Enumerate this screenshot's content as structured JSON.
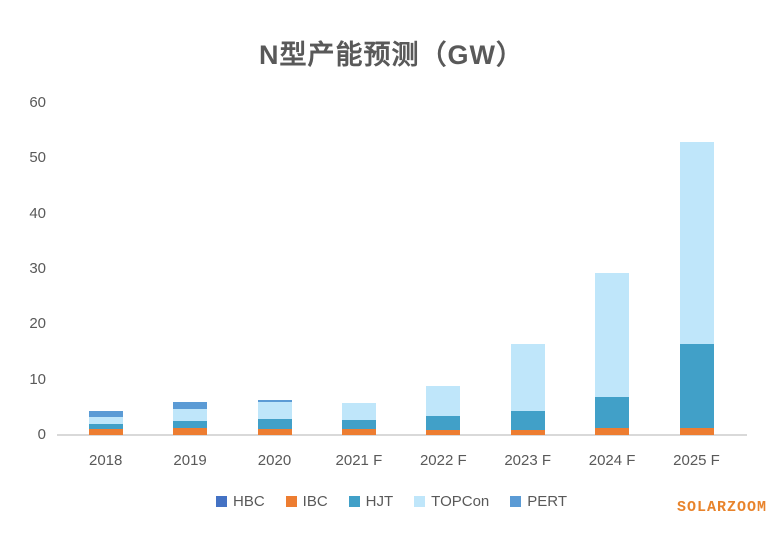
{
  "title": "N型产能预测（GW）",
  "watermark": "SOLARZOOM",
  "colors": {
    "title_text": "#595959",
    "axis_text": "#595959",
    "baseline": "#d9d9d9",
    "watermark": "#e8832b"
  },
  "chart_data": {
    "type": "bar",
    "stacked": true,
    "title": "N型产能预测（GW）",
    "xlabel": "",
    "ylabel": "",
    "categories": [
      "2018",
      "2019",
      "2020",
      "2021 F",
      "2022 F",
      "2023 F",
      "2024 F",
      "2025 F"
    ],
    "series": [
      {
        "name": "HBC",
        "color": "#4472c4",
        "values": [
          0,
          0,
          0,
          0,
          0,
          0,
          0,
          0
        ]
      },
      {
        "name": "IBC",
        "color": "#ed7d31",
        "values": [
          1.1,
          1.2,
          1.1,
          1.1,
          0.9,
          0.9,
          1.2,
          1.2
        ]
      },
      {
        "name": "HJT",
        "color": "#41a0c8",
        "values": [
          0.9,
          1.4,
          1.8,
          1.6,
          2.5,
          3.4,
          5.7,
          15.3
        ]
      },
      {
        "name": "TOPCon",
        "color": "#bfe6fa",
        "values": [
          1.2,
          2.1,
          3.0,
          3.1,
          5.5,
          12.2,
          22.4,
          36.4
        ]
      },
      {
        "name": "PERT",
        "color": "#5b9bd5",
        "values": [
          1.2,
          1.3,
          0.4,
          0,
          0,
          0,
          0,
          0
        ]
      }
    ],
    "totals": [
      4.4,
      6.0,
      6.3,
      5.8,
      8.9,
      16.5,
      29.3,
      52.9
    ],
    "ylim": [
      0,
      60
    ],
    "yticks": [
      0,
      10,
      20,
      30,
      40,
      50,
      60
    ],
    "grid": false,
    "legend_position": "bottom"
  }
}
